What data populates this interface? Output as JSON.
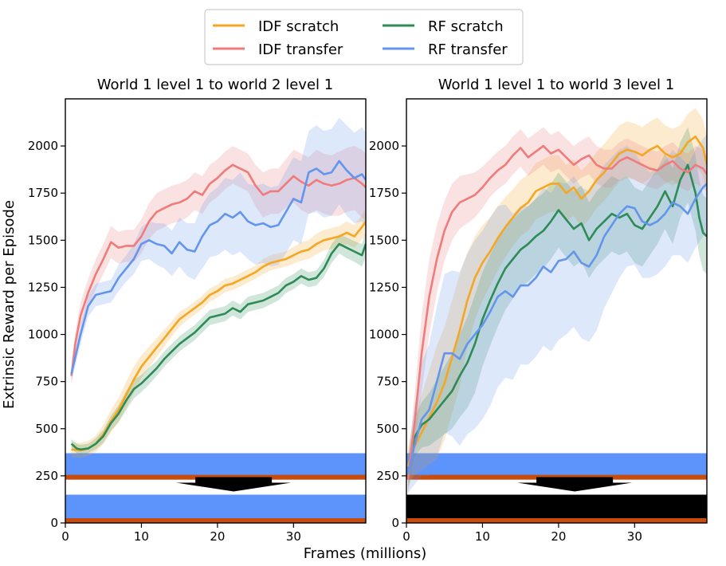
{
  "figure": {
    "ylabel": "Extrinsic Reward per Episode",
    "xlabel": "Frames (millions)"
  },
  "legend": [
    {
      "label": "IDF scratch",
      "color": "#F5A623"
    },
    {
      "label": "RF scratch",
      "color": "#2E8B57"
    },
    {
      "label": "IDF transfer",
      "color": "#EF7B7B"
    },
    {
      "label": "RF transfer",
      "color": "#6495ED"
    }
  ],
  "chart_data": [
    {
      "type": "line",
      "title": "World 1 level 1 to world 2 level 1",
      "xlim": [
        0,
        39.5
      ],
      "ylim": [
        0,
        2250
      ],
      "xticks": [
        0,
        10,
        20,
        30
      ],
      "yticks": [
        0,
        250,
        500,
        750,
        1000,
        1250,
        1500,
        1750,
        2000
      ],
      "grid": false,
      "series": [
        {
          "name": "IDF scratch",
          "color": "#F5A623",
          "x": [
            0.8,
            2,
            3,
            4,
            5,
            6,
            7,
            8,
            9,
            10,
            11,
            12,
            13,
            14,
            15,
            16,
            17,
            18,
            19,
            20,
            21,
            22,
            23,
            24,
            25,
            26,
            27,
            28,
            29,
            30,
            31,
            32,
            33,
            34,
            35,
            36,
            37,
            38,
            39,
            39.5
          ],
          "y": [
            390,
            385,
            395,
            420,
            470,
            540,
            600,
            680,
            760,
            830,
            880,
            930,
            980,
            1030,
            1080,
            1110,
            1140,
            1170,
            1210,
            1230,
            1260,
            1270,
            1290,
            1310,
            1330,
            1360,
            1380,
            1390,
            1400,
            1420,
            1440,
            1450,
            1480,
            1500,
            1510,
            1520,
            1540,
            1520,
            1570,
            1600
          ],
          "band": [
            40,
            40,
            40,
            45,
            50,
            60,
            65,
            70,
            70,
            60,
            55,
            50,
            45,
            40,
            40,
            35,
            35,
            35,
            35,
            35,
            35,
            35,
            35,
            35,
            35,
            40,
            40,
            40,
            40,
            45,
            50,
            50,
            55,
            55,
            55,
            55,
            60,
            60,
            65,
            70
          ]
        },
        {
          "name": "RF scratch",
          "color": "#2E8B57",
          "x": [
            0.8,
            1.5,
            2,
            3,
            4,
            5,
            6,
            7,
            8,
            9,
            10,
            11,
            12,
            13,
            14,
            15,
            16,
            17,
            18,
            19,
            20,
            21,
            22,
            23,
            24,
            25,
            26,
            27,
            28,
            29,
            30,
            31,
            32,
            33,
            34,
            35,
            36,
            37,
            38,
            39,
            39.5
          ],
          "y": [
            420,
            395,
            390,
            395,
            420,
            460,
            530,
            580,
            650,
            710,
            740,
            780,
            820,
            870,
            910,
            950,
            980,
            1010,
            1050,
            1090,
            1100,
            1110,
            1140,
            1120,
            1160,
            1170,
            1180,
            1200,
            1220,
            1260,
            1280,
            1310,
            1290,
            1300,
            1350,
            1430,
            1480,
            1460,
            1440,
            1420,
            1480
          ],
          "band": [
            25,
            25,
            25,
            25,
            30,
            35,
            40,
            45,
            50,
            50,
            45,
            45,
            40,
            40,
            40,
            40,
            40,
            40,
            40,
            40,
            40,
            40,
            40,
            40,
            40,
            40,
            40,
            40,
            40,
            40,
            40,
            40,
            40,
            40,
            45,
            50,
            50,
            55,
            55,
            60,
            70
          ]
        },
        {
          "name": "IDF transfer",
          "color": "#EF7B7B",
          "x": [
            0.8,
            1.3,
            2,
            3,
            4,
            5,
            6,
            7,
            8,
            9,
            10,
            11,
            12,
            13,
            14,
            15,
            16,
            17,
            18,
            19,
            20,
            21,
            22,
            23,
            24,
            25,
            26,
            27,
            28,
            29,
            30,
            31,
            32,
            33,
            34,
            35,
            36,
            37,
            38,
            39,
            39.5
          ],
          "y": [
            780,
            950,
            1100,
            1220,
            1320,
            1400,
            1490,
            1460,
            1470,
            1470,
            1520,
            1600,
            1650,
            1670,
            1690,
            1700,
            1720,
            1760,
            1740,
            1800,
            1830,
            1870,
            1900,
            1880,
            1860,
            1790,
            1740,
            1760,
            1760,
            1800,
            1840,
            1810,
            1790,
            1820,
            1800,
            1790,
            1800,
            1820,
            1830,
            1800,
            1780
          ],
          "band": [
            50,
            60,
            70,
            75,
            80,
            80,
            85,
            85,
            85,
            85,
            90,
            95,
            100,
            100,
            100,
            100,
            100,
            100,
            100,
            100,
            100,
            100,
            100,
            100,
            100,
            110,
            120,
            120,
            120,
            130,
            140,
            150,
            150,
            160,
            160,
            160,
            170,
            170,
            170,
            180,
            180
          ]
        },
        {
          "name": "RF transfer",
          "color": "#6495ED",
          "x": [
            0.8,
            2,
            3,
            4,
            5,
            6,
            7,
            8,
            9,
            10,
            11,
            12,
            13,
            14,
            15,
            16,
            17,
            18,
            19,
            20,
            21,
            22,
            23,
            24,
            25,
            26,
            27,
            28,
            29,
            30,
            31,
            32,
            33,
            34,
            35,
            36,
            37,
            38,
            39,
            39.5
          ],
          "y": [
            790,
            1000,
            1150,
            1210,
            1220,
            1230,
            1300,
            1350,
            1400,
            1480,
            1500,
            1480,
            1470,
            1430,
            1490,
            1450,
            1440,
            1520,
            1580,
            1600,
            1640,
            1620,
            1650,
            1600,
            1580,
            1590,
            1570,
            1580,
            1650,
            1720,
            1700,
            1860,
            1880,
            1850,
            1860,
            1920,
            1870,
            1830,
            1850,
            1820
          ],
          "band": [
            40,
            50,
            55,
            60,
            60,
            60,
            70,
            70,
            80,
            90,
            100,
            110,
            120,
            120,
            130,
            140,
            150,
            170,
            170,
            180,
            190,
            200,
            210,
            200,
            210,
            210,
            210,
            210,
            220,
            220,
            220,
            220,
            230,
            230,
            230,
            230,
            240,
            240,
            250,
            250
          ]
        }
      ]
    },
    {
      "type": "line",
      "title": "World 1 level 1 to world 3 level 1",
      "xlim": [
        0,
        39.5
      ],
      "ylim": [
        0,
        2250
      ],
      "xticks": [
        0,
        10,
        20,
        30
      ],
      "yticks": [
        0,
        250,
        500,
        750,
        1000,
        1250,
        1500,
        1750,
        2000
      ],
      "grid": false,
      "series": [
        {
          "name": "IDF scratch",
          "color": "#F5A623",
          "x": [
            0.2,
            1,
            2,
            3,
            4,
            5,
            6,
            7,
            8,
            9,
            10,
            11,
            12,
            13,
            14,
            15,
            16,
            17,
            18,
            19,
            20,
            21,
            22,
            23,
            24,
            25,
            26,
            27,
            28,
            29,
            30,
            31,
            32,
            33,
            34,
            35,
            36,
            37,
            38,
            39,
            39.5
          ],
          "y": [
            300,
            400,
            480,
            560,
            640,
            740,
            880,
            1020,
            1180,
            1300,
            1380,
            1440,
            1510,
            1570,
            1620,
            1670,
            1700,
            1760,
            1780,
            1800,
            1800,
            1750,
            1780,
            1720,
            1760,
            1820,
            1860,
            1910,
            1960,
            1980,
            1970,
            1950,
            1980,
            2000,
            1960,
            1940,
            1960,
            2020,
            2050,
            1990,
            1900
          ],
          "band": [
            100,
            150,
            200,
            250,
            300,
            300,
            300,
            300,
            250,
            220,
            200,
            180,
            170,
            160,
            150,
            150,
            150,
            150,
            150,
            150,
            150,
            150,
            150,
            150,
            150,
            150,
            150,
            150,
            150,
            150,
            150,
            150,
            150,
            150,
            150,
            150,
            150,
            150,
            150,
            150,
            150
          ]
        },
        {
          "name": "RF scratch",
          "color": "#2E8B57",
          "x": [
            0.2,
            1,
            2,
            3,
            4,
            5,
            6,
            7,
            8,
            9,
            10,
            11,
            12,
            13,
            14,
            15,
            16,
            17,
            18,
            19,
            20,
            21,
            22,
            23,
            24,
            25,
            26,
            27,
            28,
            29,
            30,
            31,
            32,
            33,
            34,
            35,
            36,
            37,
            38,
            38.5,
            39,
            39.5
          ],
          "y": [
            250,
            450,
            520,
            550,
            600,
            650,
            700,
            780,
            850,
            950,
            1080,
            1180,
            1270,
            1350,
            1400,
            1450,
            1480,
            1520,
            1550,
            1600,
            1660,
            1610,
            1560,
            1590,
            1500,
            1560,
            1600,
            1640,
            1620,
            1640,
            1580,
            1560,
            1620,
            1680,
            1760,
            1680,
            1820,
            1900,
            1750,
            1620,
            1540,
            1520
          ],
          "band": [
            80,
            100,
            120,
            140,
            160,
            180,
            200,
            220,
            240,
            260,
            250,
            240,
            230,
            220,
            210,
            200,
            200,
            200,
            200,
            200,
            200,
            200,
            200,
            200,
            200,
            200,
            200,
            200,
            200,
            200,
            200,
            200,
            200,
            200,
            200,
            200,
            200,
            200,
            200,
            200,
            200,
            200
          ]
        },
        {
          "name": "IDF transfer",
          "color": "#EF7B7B",
          "x": [
            0.2,
            1,
            2,
            3,
            4,
            5,
            6,
            7,
            8,
            9,
            10,
            11,
            12,
            13,
            14,
            15,
            16,
            17,
            18,
            19,
            20,
            21,
            22,
            23,
            24,
            25,
            26,
            27,
            28,
            29,
            30,
            31,
            32,
            33,
            34,
            35,
            36,
            37,
            38,
            39,
            39.5
          ],
          "y": [
            230,
            500,
            900,
            1200,
            1400,
            1550,
            1650,
            1700,
            1720,
            1740,
            1780,
            1830,
            1870,
            1900,
            1950,
            1990,
            1940,
            1970,
            2000,
            1960,
            1980,
            1940,
            1900,
            1930,
            1950,
            1900,
            1880,
            1880,
            1920,
            1940,
            1920,
            1900,
            1880,
            1870,
            1900,
            1920,
            1880,
            1860,
            1900,
            1880,
            1850
          ],
          "band": [
            80,
            150,
            200,
            200,
            180,
            160,
            150,
            140,
            130,
            120,
            110,
            100,
            100,
            100,
            100,
            100,
            100,
            100,
            100,
            100,
            100,
            100,
            100,
            100,
            100,
            100,
            100,
            100,
            100,
            100,
            100,
            100,
            100,
            100,
            100,
            100,
            100,
            100,
            100,
            100,
            100
          ]
        },
        {
          "name": "RF transfer",
          "color": "#6495ED",
          "x": [
            0.2,
            1,
            2,
            3,
            4,
            5,
            6,
            7,
            8,
            9,
            10,
            11,
            12,
            13,
            14,
            15,
            16,
            17,
            18,
            19,
            20,
            21,
            22,
            23,
            24,
            25,
            26,
            27,
            28,
            29,
            30,
            31,
            32,
            33,
            34,
            35,
            36,
            37,
            38,
            39,
            39.5
          ],
          "y": [
            260,
            400,
            550,
            600,
            750,
            900,
            900,
            870,
            950,
            1000,
            1050,
            1120,
            1200,
            1230,
            1200,
            1260,
            1260,
            1300,
            1360,
            1330,
            1390,
            1400,
            1440,
            1380,
            1360,
            1420,
            1520,
            1580,
            1640,
            1680,
            1670,
            1600,
            1580,
            1600,
            1640,
            1700,
            1680,
            1640,
            1720,
            1780,
            1800
          ],
          "band": [
            100,
            200,
            300,
            350,
            400,
            420,
            440,
            460,
            480,
            500,
            500,
            500,
            480,
            460,
            440,
            420,
            420,
            420,
            420,
            420,
            420,
            400,
            400,
            400,
            400,
            400,
            380,
            360,
            340,
            320,
            300,
            300,
            280,
            280,
            280,
            280,
            260,
            260,
            260,
            260,
            260
          ]
        }
      ]
    }
  ]
}
